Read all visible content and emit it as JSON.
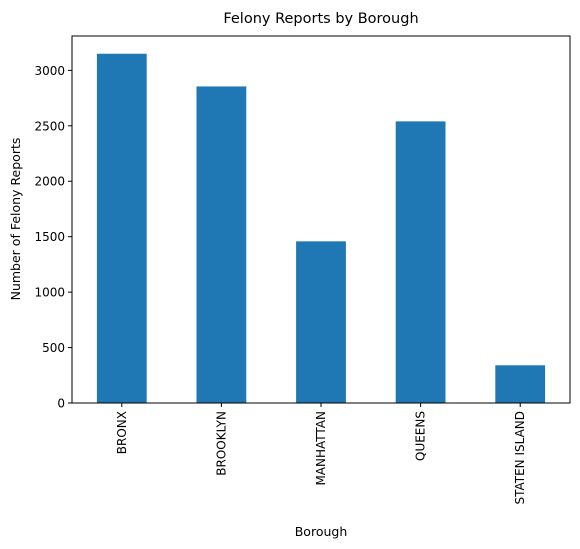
{
  "chart_data": {
    "type": "bar",
    "title": "Felony Reports by Borough",
    "xlabel": "Borough",
    "ylabel": "Number of Felony Reports",
    "categories": [
      "BRONX",
      "BROOKLYN",
      "MANHATTAN",
      "QUEENS",
      "STATEN ISLAND"
    ],
    "values": [
      3150,
      2855,
      1458,
      2540,
      340
    ],
    "ylim": [
      0,
      3310
    ],
    "yticks": [
      0,
      500,
      1000,
      1500,
      2000,
      2500,
      3000
    ],
    "grid": false,
    "legend": "none",
    "bar_color": "#1f77b4"
  }
}
